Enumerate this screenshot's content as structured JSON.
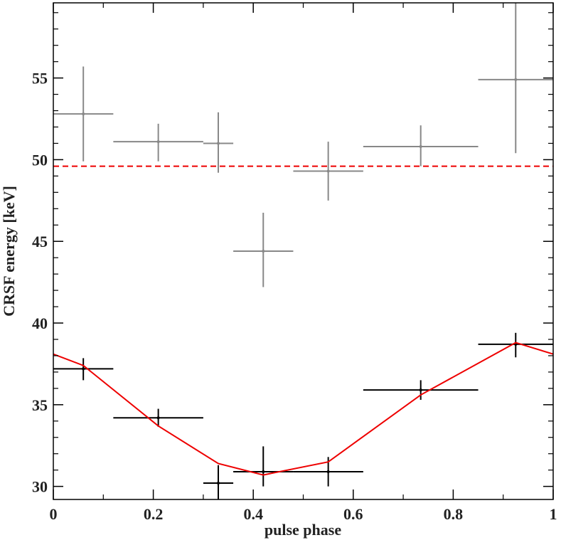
{
  "chart_data": {
    "type": "errorbar",
    "xlabel": "pulse phase",
    "ylabel": "CRSF energy [keV]",
    "xlim": [
      0,
      1
    ],
    "ylim": [
      29.2,
      59.6
    ],
    "xticks": [
      0,
      0.2,
      0.4,
      0.6,
      0.8,
      1
    ],
    "yticks": [
      30,
      35,
      40,
      45,
      50,
      55
    ],
    "series": [
      {
        "color": "#888888",
        "x": [
          0.06,
          0.21,
          0.33,
          0.42,
          0.55,
          0.735,
          0.925
        ],
        "y": [
          52.8,
          51.1,
          51.0,
          44.4,
          49.3,
          50.8,
          54.9
        ],
        "xerr": [
          [
            0.06,
            0.06
          ],
          [
            0.09,
            0.09
          ],
          [
            0.03,
            0.03
          ],
          [
            0.06,
            0.06
          ],
          [
            0.07,
            0.07
          ],
          [
            0.115,
            0.115
          ],
          [
            0.075,
            0.075
          ]
        ],
        "yerr": [
          [
            2.9,
            2.9
          ],
          [
            1.2,
            1.1
          ],
          [
            1.8,
            1.9
          ],
          [
            2.2,
            2.35
          ],
          [
            1.8,
            1.8
          ],
          [
            1.2,
            1.3
          ],
          [
            4.5,
            4.8
          ]
        ]
      },
      {
        "color": "#000000",
        "x": [
          0.06,
          0.21,
          0.33,
          0.42,
          0.55,
          0.735,
          0.925
        ],
        "y": [
          37.2,
          34.2,
          30.2,
          30.9,
          30.9,
          35.9,
          38.7
        ],
        "xerr": [
          [
            0.06,
            0.06
          ],
          [
            0.09,
            0.09
          ],
          [
            0.03,
            0.03
          ],
          [
            0.06,
            0.06
          ],
          [
            0.07,
            0.07
          ],
          [
            0.115,
            0.115
          ],
          [
            0.075,
            0.075
          ]
        ],
        "yerr": [
          [
            0.7,
            0.65
          ],
          [
            0.55,
            0.55
          ],
          [
            1.1,
            1.1
          ],
          [
            0.9,
            1.55
          ],
          [
            0.9,
            0.9
          ],
          [
            0.6,
            0.6
          ],
          [
            0.8,
            0.7
          ]
        ]
      }
    ],
    "model": {
      "color": "#ee0000",
      "x": [
        0,
        0.06,
        0.21,
        0.33,
        0.42,
        0.55,
        0.735,
        0.925,
        1
      ],
      "y": [
        38.1,
        37.4,
        33.7,
        31.4,
        30.7,
        31.5,
        35.6,
        38.8,
        38.1
      ]
    },
    "reference_line": {
      "value": 49.6,
      "color": "#ee0000",
      "dashed": true
    }
  }
}
